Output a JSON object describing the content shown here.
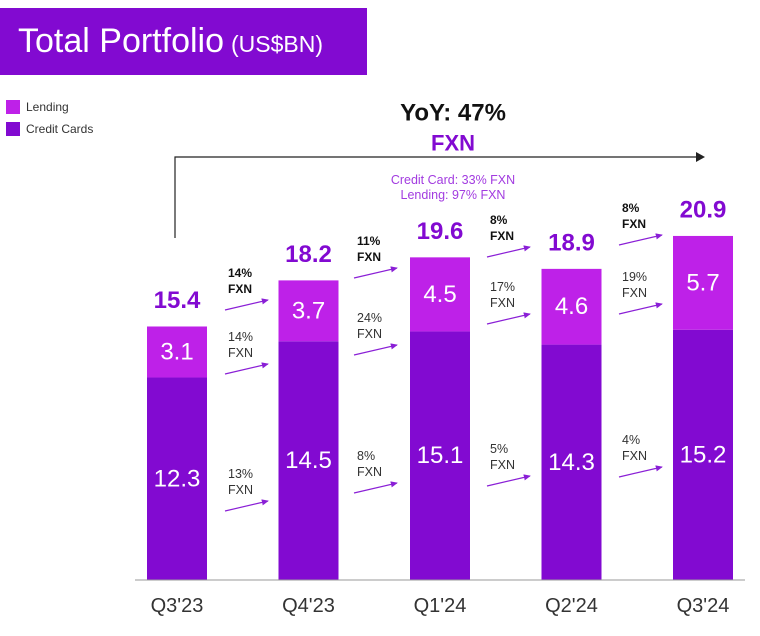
{
  "colors": {
    "brand": "#820AD1",
    "annotation_purple": "#A23BE0",
    "arrow_purple": "#8A1FD6",
    "text_dark": "#111111",
    "text_muted": "#333333"
  },
  "chart_data": {
    "type": "bar",
    "stacked": true,
    "title": "Total Portfolio",
    "unit": "(US$BN)",
    "categories": [
      "Q3'23",
      "Q4'23",
      "Q1'24",
      "Q2'24",
      "Q3'24"
    ],
    "series": [
      {
        "name": "Credit Cards",
        "values": [
          12.3,
          14.5,
          15.1,
          14.3,
          15.2
        ],
        "color": "#820AD1"
      },
      {
        "name": "Lending",
        "values": [
          3.1,
          3.7,
          4.5,
          4.6,
          5.7
        ],
        "color": "#BE21E8"
      }
    ],
    "totals": [
      15.4,
      18.2,
      19.6,
      18.9,
      20.9
    ],
    "ylim": [
      0,
      21
    ],
    "grid": false,
    "legend_position": "top-left",
    "growth_unit": "FXN",
    "growth": [
      {
        "total": "14%",
        "lending": "14%",
        "credit_cards": "13%"
      },
      {
        "total": "11%",
        "lending": "24%",
        "credit_cards": "8%"
      },
      {
        "total": "8%",
        "lending": "17%",
        "credit_cards": "5%"
      },
      {
        "total": "8%",
        "lending": "19%",
        "credit_cards": "4%"
      }
    ],
    "annotations": {
      "yoy": "YoY: 47%",
      "yoy_basis": "FXN",
      "credit_card_yoy": "Credit Card: 33% FXN",
      "lending_yoy": "Lending: 97% FXN"
    }
  }
}
